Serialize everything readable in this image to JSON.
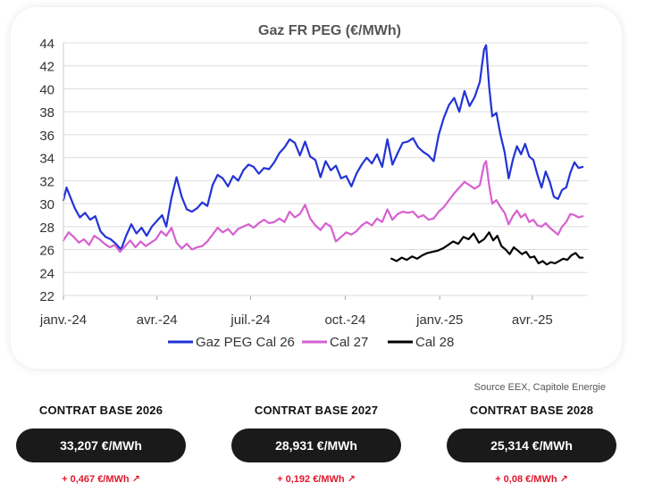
{
  "source_note": "Source EEX, Capitole Energie",
  "contracts": [
    {
      "title": "CONTRAT BASE 2026",
      "price": "33,207 €/MWh",
      "change": "+ 0,467 €/MWh",
      "change_icon": "arrow-up-right-icon"
    },
    {
      "title": "CONTRAT BASE 2027",
      "price": "28,931 €/MWh",
      "change": "+ 0,192 €/MWh",
      "change_icon": "arrow-up-right-icon"
    },
    {
      "title": "CONTRAT BASE 2028",
      "price": "25,314 €/MWh",
      "change": "+ 0,08 €/MWh",
      "change_icon": "arrow-up-right-icon"
    }
  ],
  "colors": {
    "cal26": "#2233d6",
    "cal27": "#d660d0",
    "cal28": "#000000",
    "change": "#e0182d",
    "grid": "#dddddd"
  },
  "chart_data": {
    "type": "line",
    "title": "Gaz FR PEG (€/MWh)",
    "xlabel": "",
    "ylabel": "",
    "ylim": [
      22,
      44
    ],
    "yticks": [
      22,
      24,
      26,
      28,
      30,
      32,
      34,
      36,
      38,
      40,
      42,
      44
    ],
    "xlim": [
      "2024-01-01",
      "2025-05-25"
    ],
    "xticks": [
      {
        "date": "2024-01-01",
        "label": "janv.-24"
      },
      {
        "date": "2024-04-01",
        "label": "avr.-24"
      },
      {
        "date": "2024-07-01",
        "label": "juil.-24"
      },
      {
        "date": "2024-10-01",
        "label": "oct.-24"
      },
      {
        "date": "2025-01-01",
        "label": "janv.-25"
      },
      {
        "date": "2025-04-01",
        "label": "avr.-25"
      }
    ],
    "grid": true,
    "legend_position": "bottom",
    "series": [
      {
        "name": "Gaz PEG Cal 26",
        "color": "#2233d6",
        "points": [
          [
            "2024-01-01",
            30.3
          ],
          [
            "2024-01-04",
            31.4
          ],
          [
            "2024-01-08",
            30.5
          ],
          [
            "2024-01-12",
            29.6
          ],
          [
            "2024-01-17",
            28.8
          ],
          [
            "2024-01-22",
            29.2
          ],
          [
            "2024-01-27",
            28.6
          ],
          [
            "2024-02-01",
            28.9
          ],
          [
            "2024-02-06",
            27.6
          ],
          [
            "2024-02-11",
            27.1
          ],
          [
            "2024-02-16",
            26.9
          ],
          [
            "2024-02-21",
            26.5
          ],
          [
            "2024-02-26",
            26.0
          ],
          [
            "2024-03-02",
            27.2
          ],
          [
            "2024-03-07",
            28.2
          ],
          [
            "2024-03-12",
            27.4
          ],
          [
            "2024-03-17",
            27.9
          ],
          [
            "2024-03-22",
            27.2
          ],
          [
            "2024-03-27",
            28.0
          ],
          [
            "2024-04-01",
            28.5
          ],
          [
            "2024-04-06",
            29.0
          ],
          [
            "2024-04-10",
            28.0
          ],
          [
            "2024-04-15",
            30.5
          ],
          [
            "2024-04-20",
            32.3
          ],
          [
            "2024-04-25",
            30.6
          ],
          [
            "2024-04-30",
            29.5
          ],
          [
            "2024-05-05",
            29.3
          ],
          [
            "2024-05-10",
            29.6
          ],
          [
            "2024-05-15",
            30.1
          ],
          [
            "2024-05-20",
            29.8
          ],
          [
            "2024-05-25",
            31.6
          ],
          [
            "2024-05-30",
            32.5
          ],
          [
            "2024-06-04",
            32.2
          ],
          [
            "2024-06-09",
            31.5
          ],
          [
            "2024-06-14",
            32.4
          ],
          [
            "2024-06-19",
            32.0
          ],
          [
            "2024-06-24",
            32.9
          ],
          [
            "2024-06-29",
            33.4
          ],
          [
            "2024-07-04",
            33.2
          ],
          [
            "2024-07-09",
            32.6
          ],
          [
            "2024-07-14",
            33.1
          ],
          [
            "2024-07-19",
            33.0
          ],
          [
            "2024-07-24",
            33.6
          ],
          [
            "2024-07-29",
            34.4
          ],
          [
            "2024-08-03",
            34.9
          ],
          [
            "2024-08-08",
            35.6
          ],
          [
            "2024-08-13",
            35.3
          ],
          [
            "2024-08-18",
            34.2
          ],
          [
            "2024-08-23",
            35.4
          ],
          [
            "2024-08-28",
            34.1
          ],
          [
            "2024-09-02",
            33.8
          ],
          [
            "2024-09-07",
            32.3
          ],
          [
            "2024-09-12",
            33.7
          ],
          [
            "2024-09-17",
            32.9
          ],
          [
            "2024-09-22",
            33.3
          ],
          [
            "2024-09-27",
            32.2
          ],
          [
            "2024-10-02",
            32.4
          ],
          [
            "2024-10-07",
            31.5
          ],
          [
            "2024-10-12",
            32.6
          ],
          [
            "2024-10-17",
            33.4
          ],
          [
            "2024-10-22",
            34.0
          ],
          [
            "2024-10-27",
            33.5
          ],
          [
            "2024-11-01",
            34.3
          ],
          [
            "2024-11-06",
            33.2
          ],
          [
            "2024-11-11",
            35.6
          ],
          [
            "2024-11-16",
            33.4
          ],
          [
            "2024-11-21",
            34.4
          ],
          [
            "2024-11-26",
            35.3
          ],
          [
            "2024-12-01",
            35.4
          ],
          [
            "2024-12-06",
            35.7
          ],
          [
            "2024-12-11",
            34.9
          ],
          [
            "2024-12-16",
            34.5
          ],
          [
            "2024-12-21",
            34.2
          ],
          [
            "2024-12-26",
            33.7
          ],
          [
            "2024-12-31",
            36.0
          ],
          [
            "2025-01-05",
            37.5
          ],
          [
            "2025-01-10",
            38.6
          ],
          [
            "2025-01-15",
            39.2
          ],
          [
            "2025-01-20",
            38.0
          ],
          [
            "2025-01-25",
            39.8
          ],
          [
            "2025-01-30",
            38.5
          ],
          [
            "2025-02-04",
            39.3
          ],
          [
            "2025-02-09",
            40.6
          ],
          [
            "2025-02-13",
            43.4
          ],
          [
            "2025-02-15",
            43.8
          ],
          [
            "2025-02-18",
            40.2
          ],
          [
            "2025-02-21",
            37.6
          ],
          [
            "2025-02-25",
            37.9
          ],
          [
            "2025-03-01",
            36.0
          ],
          [
            "2025-03-05",
            34.5
          ],
          [
            "2025-03-09",
            32.2
          ],
          [
            "2025-03-13",
            33.8
          ],
          [
            "2025-03-17",
            35.0
          ],
          [
            "2025-03-21",
            34.3
          ],
          [
            "2025-03-25",
            35.2
          ],
          [
            "2025-03-29",
            34.1
          ],
          [
            "2025-04-02",
            33.8
          ],
          [
            "2025-04-06",
            32.5
          ],
          [
            "2025-04-10",
            31.4
          ],
          [
            "2025-04-14",
            32.8
          ],
          [
            "2025-04-18",
            31.9
          ],
          [
            "2025-04-22",
            30.6
          ],
          [
            "2025-04-26",
            30.4
          ],
          [
            "2025-04-30",
            31.2
          ],
          [
            "2025-05-04",
            31.4
          ],
          [
            "2025-05-08",
            32.7
          ],
          [
            "2025-05-12",
            33.6
          ],
          [
            "2025-05-16",
            33.1
          ],
          [
            "2025-05-20",
            33.2
          ]
        ]
      },
      {
        "name": "Cal 27",
        "color": "#d660d0",
        "points": [
          [
            "2024-01-01",
            26.8
          ],
          [
            "2024-01-06",
            27.5
          ],
          [
            "2024-01-11",
            27.1
          ],
          [
            "2024-01-16",
            26.6
          ],
          [
            "2024-01-21",
            26.9
          ],
          [
            "2024-01-26",
            26.4
          ],
          [
            "2024-01-31",
            27.2
          ],
          [
            "2024-02-05",
            26.9
          ],
          [
            "2024-02-10",
            26.5
          ],
          [
            "2024-02-15",
            26.2
          ],
          [
            "2024-02-20",
            26.4
          ],
          [
            "2024-02-25",
            25.8
          ],
          [
            "2024-03-01",
            26.3
          ],
          [
            "2024-03-06",
            26.8
          ],
          [
            "2024-03-11",
            26.2
          ],
          [
            "2024-03-16",
            26.7
          ],
          [
            "2024-03-21",
            26.3
          ],
          [
            "2024-03-26",
            26.6
          ],
          [
            "2024-03-31",
            26.9
          ],
          [
            "2024-04-05",
            27.6
          ],
          [
            "2024-04-10",
            27.2
          ],
          [
            "2024-04-15",
            27.9
          ],
          [
            "2024-04-20",
            26.6
          ],
          [
            "2024-04-25",
            26.1
          ],
          [
            "2024-04-30",
            26.5
          ],
          [
            "2024-05-05",
            26.0
          ],
          [
            "2024-05-10",
            26.2
          ],
          [
            "2024-05-15",
            26.3
          ],
          [
            "2024-05-20",
            26.7
          ],
          [
            "2024-05-25",
            27.3
          ],
          [
            "2024-05-30",
            27.9
          ],
          [
            "2024-06-04",
            27.5
          ],
          [
            "2024-06-09",
            27.8
          ],
          [
            "2024-06-14",
            27.3
          ],
          [
            "2024-06-19",
            27.8
          ],
          [
            "2024-06-24",
            28.0
          ],
          [
            "2024-06-29",
            28.2
          ],
          [
            "2024-07-04",
            27.9
          ],
          [
            "2024-07-09",
            28.3
          ],
          [
            "2024-07-14",
            28.6
          ],
          [
            "2024-07-19",
            28.3
          ],
          [
            "2024-07-24",
            28.4
          ],
          [
            "2024-07-29",
            28.7
          ],
          [
            "2024-08-03",
            28.4
          ],
          [
            "2024-08-08",
            29.3
          ],
          [
            "2024-08-13",
            28.8
          ],
          [
            "2024-08-18",
            29.1
          ],
          [
            "2024-08-23",
            29.9
          ],
          [
            "2024-08-28",
            28.7
          ],
          [
            "2024-09-02",
            28.1
          ],
          [
            "2024-09-07",
            27.7
          ],
          [
            "2024-09-12",
            28.3
          ],
          [
            "2024-09-17",
            28.0
          ],
          [
            "2024-09-22",
            26.7
          ],
          [
            "2024-09-27",
            27.1
          ],
          [
            "2024-10-02",
            27.5
          ],
          [
            "2024-10-07",
            27.3
          ],
          [
            "2024-10-12",
            27.6
          ],
          [
            "2024-10-17",
            28.1
          ],
          [
            "2024-10-22",
            28.4
          ],
          [
            "2024-10-27",
            28.1
          ],
          [
            "2024-11-01",
            28.7
          ],
          [
            "2024-11-06",
            28.4
          ],
          [
            "2024-11-11",
            29.5
          ],
          [
            "2024-11-16",
            28.6
          ],
          [
            "2024-11-21",
            29.1
          ],
          [
            "2024-11-26",
            29.3
          ],
          [
            "2024-12-01",
            29.2
          ],
          [
            "2024-12-06",
            29.3
          ],
          [
            "2024-12-11",
            28.8
          ],
          [
            "2024-12-16",
            29.0
          ],
          [
            "2024-12-21",
            28.6
          ],
          [
            "2024-12-26",
            28.7
          ],
          [
            "2024-12-31",
            29.3
          ],
          [
            "2025-01-05",
            29.7
          ],
          [
            "2025-01-10",
            30.3
          ],
          [
            "2025-01-15",
            30.9
          ],
          [
            "2025-01-20",
            31.4
          ],
          [
            "2025-01-25",
            31.9
          ],
          [
            "2025-01-30",
            31.6
          ],
          [
            "2025-02-04",
            31.3
          ],
          [
            "2025-02-09",
            31.6
          ],
          [
            "2025-02-13",
            33.4
          ],
          [
            "2025-02-15",
            33.7
          ],
          [
            "2025-02-18",
            31.6
          ],
          [
            "2025-02-21",
            30.0
          ],
          [
            "2025-02-25",
            30.3
          ],
          [
            "2025-03-01",
            29.7
          ],
          [
            "2025-03-05",
            29.2
          ],
          [
            "2025-03-09",
            28.2
          ],
          [
            "2025-03-13",
            28.9
          ],
          [
            "2025-03-17",
            29.4
          ],
          [
            "2025-03-21",
            28.8
          ],
          [
            "2025-03-25",
            29.1
          ],
          [
            "2025-03-29",
            28.4
          ],
          [
            "2025-04-02",
            28.6
          ],
          [
            "2025-04-06",
            28.1
          ],
          [
            "2025-04-10",
            28.0
          ],
          [
            "2025-04-14",
            28.3
          ],
          [
            "2025-04-18",
            27.9
          ],
          [
            "2025-04-22",
            27.6
          ],
          [
            "2025-04-26",
            27.3
          ],
          [
            "2025-04-30",
            28.0
          ],
          [
            "2025-05-04",
            28.4
          ],
          [
            "2025-05-08",
            29.1
          ],
          [
            "2025-05-12",
            29.0
          ],
          [
            "2025-05-16",
            28.8
          ],
          [
            "2025-05-20",
            28.9
          ]
        ]
      },
      {
        "name": "Cal 28",
        "color": "#000000",
        "points": [
          [
            "2024-11-15",
            25.2
          ],
          [
            "2024-11-20",
            25.0
          ],
          [
            "2024-11-25",
            25.3
          ],
          [
            "2024-11-30",
            25.1
          ],
          [
            "2024-12-05",
            25.4
          ],
          [
            "2024-12-10",
            25.2
          ],
          [
            "2024-12-15",
            25.5
          ],
          [
            "2024-12-20",
            25.7
          ],
          [
            "2024-12-25",
            25.8
          ],
          [
            "2024-12-30",
            25.9
          ],
          [
            "2025-01-04",
            26.1
          ],
          [
            "2025-01-09",
            26.4
          ],
          [
            "2025-01-14",
            26.7
          ],
          [
            "2025-01-19",
            26.5
          ],
          [
            "2025-01-24",
            27.1
          ],
          [
            "2025-01-29",
            26.9
          ],
          [
            "2025-02-03",
            27.4
          ],
          [
            "2025-02-08",
            26.6
          ],
          [
            "2025-02-13",
            26.9
          ],
          [
            "2025-02-18",
            27.5
          ],
          [
            "2025-02-22",
            26.8
          ],
          [
            "2025-02-26",
            27.2
          ],
          [
            "2025-03-02",
            26.3
          ],
          [
            "2025-03-06",
            26.0
          ],
          [
            "2025-03-10",
            25.6
          ],
          [
            "2025-03-14",
            26.2
          ],
          [
            "2025-03-18",
            25.9
          ],
          [
            "2025-03-22",
            25.6
          ],
          [
            "2025-03-26",
            25.8
          ],
          [
            "2025-03-30",
            25.3
          ],
          [
            "2025-04-03",
            25.4
          ],
          [
            "2025-04-07",
            24.8
          ],
          [
            "2025-04-11",
            25.0
          ],
          [
            "2025-04-15",
            24.7
          ],
          [
            "2025-04-19",
            24.9
          ],
          [
            "2025-04-23",
            24.8
          ],
          [
            "2025-04-27",
            25.0
          ],
          [
            "2025-05-01",
            25.2
          ],
          [
            "2025-05-05",
            25.1
          ],
          [
            "2025-05-09",
            25.5
          ],
          [
            "2025-05-13",
            25.7
          ],
          [
            "2025-05-17",
            25.3
          ],
          [
            "2025-05-20",
            25.3
          ]
        ]
      }
    ]
  }
}
